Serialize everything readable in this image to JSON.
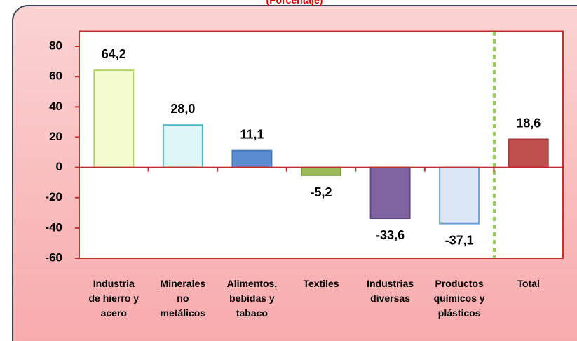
{
  "chart_data": {
    "type": "bar",
    "subtitle": "(Porcentaje)",
    "categories": [
      "Industria\nde hierro y\nacero",
      "Minerales\nno\nmetálicos",
      "Alimentos,\nbebidas y\ntabaco",
      "Textiles",
      "Industrias\ndiversas",
      "Productos\nquímicos y\nplásticos",
      "Total"
    ],
    "values": [
      64.2,
      28.0,
      11.1,
      -5.2,
      -33.6,
      -37.1,
      18.6
    ],
    "value_labels": [
      "64,2",
      "28,0",
      "11,1",
      "-5,2",
      "-33,6",
      "-37,1",
      "18,6"
    ],
    "colors": [
      "#f4fbcf",
      "#dff6f8",
      "#5b8bd0",
      "#9bbb59",
      "#8064a2",
      "#dbe7f7",
      "#c0504d"
    ],
    "edge_colors": [
      "#b3d46a",
      "#4fb6c6",
      "#4a78b8",
      "#7a9a3e",
      "#5e4880",
      "#6e9ed3",
      "#a33c3a"
    ],
    "ylim": [
      -60,
      90
    ],
    "yticks": [
      -60,
      -40,
      -20,
      0,
      20,
      40,
      60,
      80
    ],
    "grid": false
  }
}
